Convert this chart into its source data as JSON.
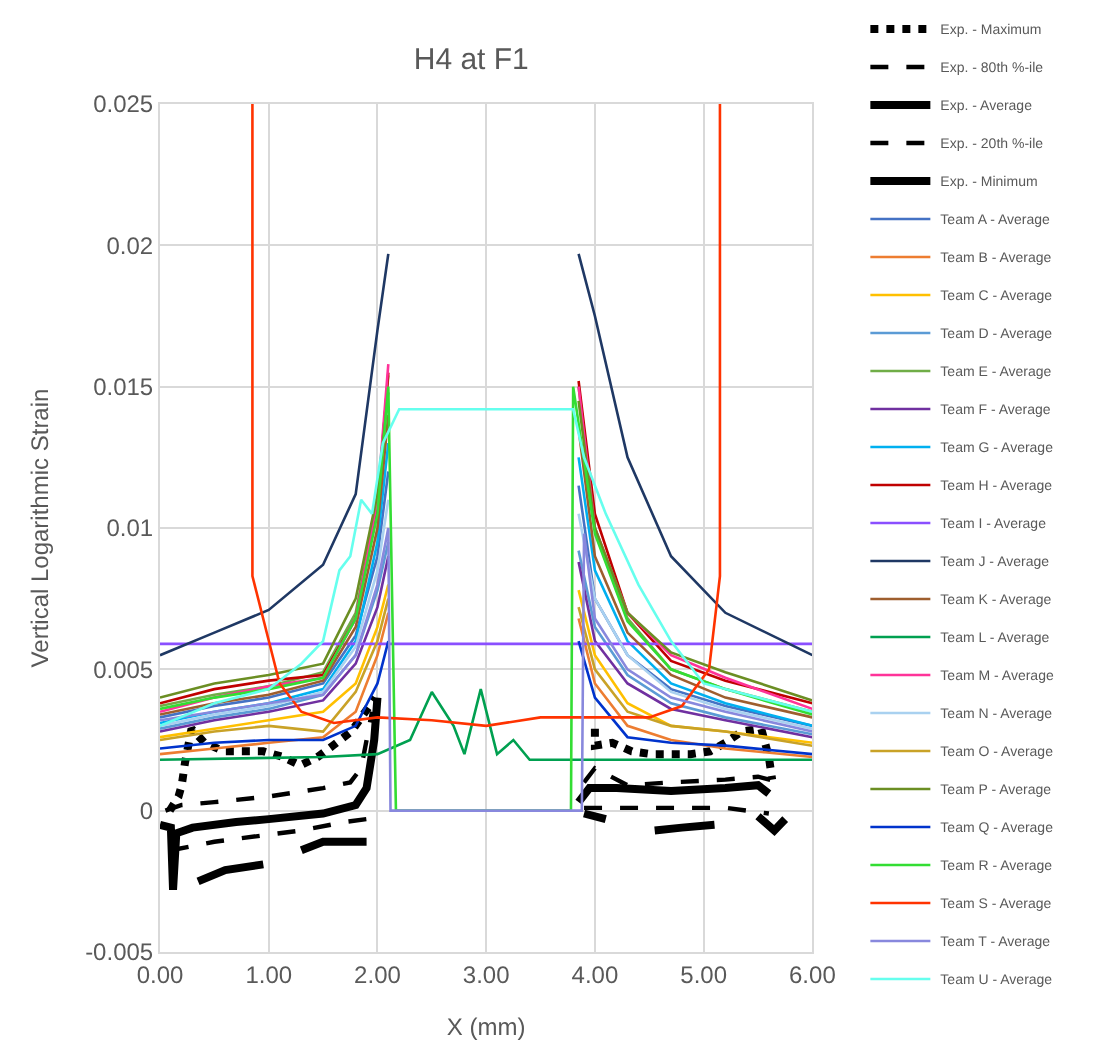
{
  "chart_data": {
    "type": "line",
    "title": "H4 at F1",
    "xlabel": "X (mm)",
    "ylabel": "Vertical Logarithmic Strain",
    "xlim": [
      0,
      6
    ],
    "xticks": [
      {
        "value": 0,
        "label": "0.00"
      },
      {
        "value": 1,
        "label": "1.00"
      },
      {
        "value": 2,
        "label": "2.00"
      },
      {
        "value": 3,
        "label": "3.00"
      },
      {
        "value": 4,
        "label": "4.00"
      },
      {
        "value": 5,
        "label": "5.00"
      },
      {
        "value": 6,
        "label": "6.00"
      }
    ],
    "ylim": [
      -0.005,
      0.025
    ],
    "yticks": [
      -0.005,
      0,
      0.005,
      0.01,
      0.015,
      0.02,
      0.025
    ],
    "grid": true,
    "legend": "right",
    "series": [
      {
        "name": "Exp. - Maximum",
        "color": "#000000",
        "line_style": "dotted",
        "x": [
          0.09,
          0.17,
          0.2,
          0.23,
          0.29,
          0.41,
          0.59,
          0.76,
          0.95,
          1.13,
          1.29,
          1.45,
          1.59,
          1.76,
          1.98,
          3.0,
          4.0,
          4.0,
          4.16,
          4.34,
          4.52,
          4.7,
          4.88,
          5.06,
          5.2,
          5.35,
          5.53,
          5.6,
          5.63
        ],
        "values": [
          0,
          0.0005,
          0.0009,
          0.0017,
          0.0029,
          0.0024,
          0.0021,
          0.0021,
          0.0021,
          0.0019,
          0.0016,
          0.0019,
          0.0023,
          0.0028,
          0.004,
          null,
          0.0029,
          0.0023,
          0.0024,
          0.0021,
          0.002,
          0.002,
          0.002,
          0.0021,
          0.0024,
          0.0028,
          0.0029,
          0.0019,
          0.0011
        ]
      },
      {
        "name": "Exp. - 80th %-ile",
        "color": "#000000",
        "line_style": "dashed",
        "x": [
          0.05,
          0.2,
          0.5,
          1.0,
          1.5,
          1.75,
          1.85,
          1.95,
          3.0,
          3.9,
          4.0,
          4.3,
          4.7,
          5.2,
          5.5,
          5.7
        ],
        "values": [
          0,
          0.0002,
          0.0003,
          0.0005,
          0.0008,
          0.001,
          0.0015,
          0.0035,
          null,
          0.001,
          0.0015,
          0.0009,
          0.001,
          0.0011,
          0.0012,
          0.001
        ]
      },
      {
        "name": "Exp. - Average",
        "color": "#000000",
        "line_style": "solid",
        "x": [
          0,
          0.1,
          0.12,
          0.15,
          0.3,
          0.7,
          1.0,
          1.5,
          1.8,
          1.9,
          1.97,
          2.0,
          3.0,
          3.85,
          3.95,
          4.2,
          4.7,
          5.2,
          5.5,
          5.6
        ],
        "values": [
          -0.0005,
          -0.0006,
          -0.0028,
          -0.0008,
          -0.0006,
          -0.0004,
          -0.0003,
          -0.0001,
          0.0002,
          0.0008,
          0.0025,
          0.004,
          null,
          0.0003,
          0.0008,
          0.0008,
          0.0007,
          0.0008,
          0.0009,
          0.0006
        ]
      },
      {
        "name": "Exp. - 20th %-ile",
        "color": "#000000",
        "line_style": "dashed",
        "x": [
          0.1,
          0.5,
          0.9,
          1.3,
          1.7,
          1.9,
          3.0,
          3.9,
          4.2,
          4.7,
          5.2,
          5.6
        ],
        "values": [
          -0.0014,
          -0.0011,
          -0.0009,
          -0.0007,
          -0.0004,
          -0.0003,
          null,
          0.0001,
          0.0001,
          0.0001,
          0.0001,
          -0.0001
        ]
      },
      {
        "name": "Exp. - Minimum",
        "color": "#000000",
        "line_style": "solid",
        "x": [
          0.35,
          0.6,
          0.95,
          1.1,
          1.3,
          1.5,
          1.9,
          3.0,
          3.9,
          4.1,
          4.3,
          4.55,
          4.8,
          5.1,
          5.3,
          5.5,
          5.65,
          5.75
        ],
        "values": [
          -0.0025,
          -0.0021,
          -0.0019,
          null,
          -0.0014,
          -0.0011,
          -0.0011,
          null,
          -0.0001,
          -0.0003,
          null,
          -0.0007,
          -0.0006,
          -0.0005,
          null,
          -0.0002,
          -0.0007,
          -0.0003
        ]
      },
      {
        "name": "Team A - Average",
        "color": "#4472c4",
        "x": [
          0,
          0.5,
          1.0,
          1.5,
          1.8,
          2.0,
          2.1,
          3.0,
          3.85,
          4.0,
          4.3,
          4.7,
          5.2,
          6.0
        ],
        "values": [
          0.0033,
          0.0037,
          0.004,
          0.0045,
          0.0062,
          0.009,
          0.012,
          null,
          0.0115,
          0.0075,
          0.0055,
          0.0043,
          0.0037,
          0.003
        ]
      },
      {
        "name": "Team B - Average",
        "color": "#ed7d31",
        "x": [
          0,
          0.5,
          1.0,
          1.5,
          1.8,
          2.0,
          2.1,
          3.0,
          3.85,
          4.0,
          4.3,
          4.7,
          5.2,
          6.0
        ],
        "values": [
          0.002,
          0.0022,
          0.0024,
          0.0026,
          0.0035,
          0.0055,
          0.007,
          null,
          0.0068,
          0.0045,
          0.003,
          0.0025,
          0.0022,
          0.0019
        ]
      },
      {
        "name": "Team C - Average",
        "color": "#ffc000",
        "x": [
          0,
          0.5,
          1.0,
          1.5,
          1.8,
          2.0,
          2.1,
          3.0,
          3.85,
          4.0,
          4.3,
          4.7,
          5.2,
          6.0
        ],
        "values": [
          0.0026,
          0.0029,
          0.0032,
          0.0035,
          0.0045,
          0.0065,
          0.008,
          null,
          0.0078,
          0.0055,
          0.0038,
          0.003,
          0.0028,
          0.0024
        ]
      },
      {
        "name": "Team D - Average",
        "color": "#5b9bd5",
        "x": [
          0,
          0.5,
          1.0,
          1.5,
          1.8,
          2.0,
          2.1,
          3.0,
          3.85,
          4.0,
          4.3,
          4.7,
          5.2,
          6.0
        ],
        "values": [
          0.0029,
          0.0033,
          0.0036,
          0.0041,
          0.0055,
          0.0078,
          0.0095,
          null,
          0.0092,
          0.0065,
          0.0048,
          0.0038,
          0.0033,
          0.0027
        ]
      },
      {
        "name": "Team E - Average",
        "color": "#70ad47",
        "x": [
          0,
          0.5,
          1.0,
          1.5,
          1.8,
          2.0,
          2.1,
          3.0,
          3.85,
          4.0,
          4.3,
          4.7,
          5.2,
          6.0
        ],
        "values": [
          0.0037,
          0.0041,
          0.0044,
          0.0049,
          0.007,
          0.011,
          0.0154,
          null,
          0.015,
          0.01,
          0.0068,
          0.005,
          0.0043,
          0.0035
        ]
      },
      {
        "name": "Team F - Average",
        "color": "#7030a0",
        "x": [
          0,
          0.5,
          1.0,
          1.5,
          1.8,
          2.0,
          2.1,
          3.0,
          3.85,
          4.0,
          4.3,
          4.7,
          5.2,
          6.0
        ],
        "values": [
          0.0028,
          0.0032,
          0.0035,
          0.0039,
          0.0052,
          0.0072,
          0.009,
          null,
          0.0088,
          0.006,
          0.0045,
          0.0036,
          0.0032,
          0.0026
        ]
      },
      {
        "name": "Team G - Average",
        "color": "#00b0f0",
        "x": [
          0,
          0.5,
          1.0,
          1.5,
          1.8,
          2.0,
          2.1,
          3.0,
          3.85,
          4.0,
          4.3,
          4.7,
          5.2,
          6.0
        ],
        "values": [
          0.0031,
          0.0035,
          0.0038,
          0.0043,
          0.006,
          0.0095,
          0.013,
          null,
          0.0125,
          0.0085,
          0.006,
          0.0045,
          0.0038,
          0.003
        ]
      },
      {
        "name": "Team H - Average",
        "color": "#c00000",
        "x": [
          0,
          0.5,
          1.0,
          1.5,
          1.8,
          2.0,
          2.1,
          3.0,
          3.85,
          4.0,
          4.3,
          4.7,
          5.2,
          6.0
        ],
        "values": [
          0.0038,
          0.0043,
          0.0046,
          0.0048,
          0.0068,
          0.0108,
          0.0155,
          null,
          0.0152,
          0.0105,
          0.007,
          0.0053,
          0.0046,
          0.0038
        ]
      },
      {
        "name": "Team I - Average",
        "color": "#8a4fff",
        "x": [
          0,
          6.0
        ],
        "values": [
          0.0059,
          0.0059
        ]
      },
      {
        "name": "Team J - Average",
        "color": "#1f3864",
        "x": [
          0,
          0.5,
          1.0,
          1.5,
          1.8,
          2.0,
          2.1,
          3.0,
          3.85,
          4.0,
          4.3,
          4.7,
          5.2,
          6.0
        ],
        "values": [
          0.0055,
          0.0063,
          0.0071,
          0.0087,
          0.0112,
          0.017,
          0.0197,
          null,
          0.0197,
          0.0175,
          0.0125,
          0.009,
          0.007,
          0.0055
        ]
      },
      {
        "name": "Team K - Average",
        "color": "#9e5e2e",
        "x": [
          0,
          0.5,
          1.0,
          1.5,
          1.8,
          2.0,
          2.1,
          3.0,
          3.85,
          4.0,
          4.3,
          4.7,
          5.2,
          6.0
        ],
        "values": [
          0.0034,
          0.0038,
          0.0041,
          0.0046,
          0.0065,
          0.01,
          0.014,
          null,
          0.0135,
          0.009,
          0.0063,
          0.0048,
          0.004,
          0.0033
        ]
      },
      {
        "name": "Team L - Average",
        "color": "#00a050",
        "x": [
          0,
          1.5,
          2.0,
          2.3,
          2.5,
          2.7,
          2.8,
          2.95,
          3.1,
          3.25,
          3.4,
          4.5,
          6.0
        ],
        "values": [
          0.0018,
          0.0019,
          0.002,
          0.0025,
          0.0042,
          0.003,
          0.002,
          0.0043,
          0.002,
          0.0025,
          0.0018,
          0.0018,
          0.0018
        ]
      },
      {
        "name": "Team M - Average",
        "color": "#ff3399",
        "x": [
          0,
          0.5,
          1.0,
          1.5,
          1.8,
          2.0,
          2.1,
          3.0,
          3.85,
          4.0,
          4.3,
          4.7,
          5.2,
          6.0
        ],
        "values": [
          0.0035,
          0.004,
          0.0044,
          0.0047,
          0.0068,
          0.011,
          0.0158,
          null,
          0.015,
          0.01,
          0.007,
          0.0055,
          0.0047,
          0.0036
        ]
      },
      {
        "name": "Team N - Average",
        "color": "#a9d1f0",
        "x": [
          0,
          0.5,
          1.0,
          1.5,
          1.8,
          2.0,
          2.1,
          3.0,
          3.85,
          4.0,
          4.3,
          4.7,
          5.2,
          6.0
        ],
        "values": [
          0.003,
          0.0034,
          0.0037,
          0.0042,
          0.0058,
          0.0085,
          0.011,
          null,
          0.0105,
          0.0075,
          0.0055,
          0.0042,
          0.0036,
          0.0029
        ]
      },
      {
        "name": "Team O - Average",
        "color": "#c9a227",
        "x": [
          0,
          0.5,
          1.0,
          1.5,
          1.8,
          2.0,
          2.1,
          3.0,
          3.85,
          4.0,
          4.3,
          4.7,
          5.2,
          6.0
        ],
        "values": [
          0.0025,
          0.0028,
          0.003,
          0.0028,
          0.0042,
          0.006,
          0.0075,
          null,
          0.0072,
          0.005,
          0.0035,
          0.003,
          0.0028,
          0.0023
        ]
      },
      {
        "name": "Team P - Average",
        "color": "#6b8e23",
        "x": [
          0,
          0.5,
          1.0,
          1.5,
          1.8,
          2.0,
          2.1,
          3.0,
          3.85,
          4.0,
          4.3,
          4.7,
          5.2,
          6.0
        ],
        "values": [
          0.004,
          0.0045,
          0.0048,
          0.0052,
          0.0075,
          0.0112,
          0.0148,
          null,
          0.0145,
          0.01,
          0.007,
          0.0056,
          0.0049,
          0.0039
        ]
      },
      {
        "name": "Team Q - Average",
        "color": "#0033cc",
        "x": [
          0,
          0.5,
          1.0,
          1.5,
          1.8,
          2.0,
          2.1,
          3.0,
          3.85,
          4.0,
          4.3,
          4.7,
          5.2,
          6.0
        ],
        "values": [
          0.0022,
          0.0024,
          0.0025,
          0.0025,
          0.003,
          0.0045,
          0.006,
          null,
          0.006,
          0.004,
          0.0026,
          0.0024,
          0.0023,
          0.002
        ]
      },
      {
        "name": "Team R - Average",
        "color": "#33dd33",
        "x": [
          0,
          0.5,
          1.0,
          1.5,
          1.8,
          2.0,
          2.1,
          2.17,
          3.78,
          3.8,
          4.0,
          4.3,
          4.7,
          5.2,
          6.0
        ],
        "values": [
          0.0036,
          0.004,
          0.0043,
          0.0047,
          0.0068,
          0.0105,
          0.015,
          0,
          0,
          0.015,
          0.0098,
          0.0067,
          0.005,
          0.0043,
          0.0034
        ]
      },
      {
        "name": "Team S - Average",
        "color": "#ff3300",
        "x": [
          0.85,
          0.85,
          1.1,
          1.3,
          1.6,
          2.0,
          2.5,
          3.0,
          3.5,
          4.5,
          4.8,
          5.05,
          5.15,
          5.15
        ],
        "values": [
          0.025,
          0.0083,
          0.0045,
          0.0035,
          0.0031,
          0.0033,
          0.0032,
          0.003,
          0.0033,
          0.0033,
          0.0037,
          0.005,
          0.0083,
          0.025
        ]
      },
      {
        "name": "Team T - Average",
        "color": "#8888dd",
        "x": [
          0,
          0.5,
          1.0,
          1.5,
          1.8,
          2.0,
          2.1,
          2.12,
          3.88,
          3.9,
          4.0,
          4.3,
          4.7,
          5.2,
          6.0
        ],
        "values": [
          0.0032,
          0.0035,
          0.0038,
          0.0041,
          0.0055,
          0.008,
          0.01,
          0,
          0,
          0.0098,
          0.0068,
          0.005,
          0.004,
          0.0035,
          0.0028
        ]
      },
      {
        "name": "Team U - Average",
        "color": "#66ffee",
        "x": [
          0,
          0.5,
          1.0,
          1.3,
          1.5,
          1.65,
          1.75,
          1.85,
          1.95,
          2.05,
          2.2,
          3.8,
          3.9,
          4.1,
          4.4,
          4.7,
          5.0,
          5.5,
          6.0
        ],
        "values": [
          0.003,
          0.0038,
          0.0043,
          0.0052,
          0.006,
          0.0085,
          0.009,
          0.011,
          0.0105,
          0.013,
          0.0142,
          0.0142,
          0.0125,
          0.0105,
          0.008,
          0.006,
          0.0045,
          0.004,
          0.0035
        ]
      }
    ]
  }
}
